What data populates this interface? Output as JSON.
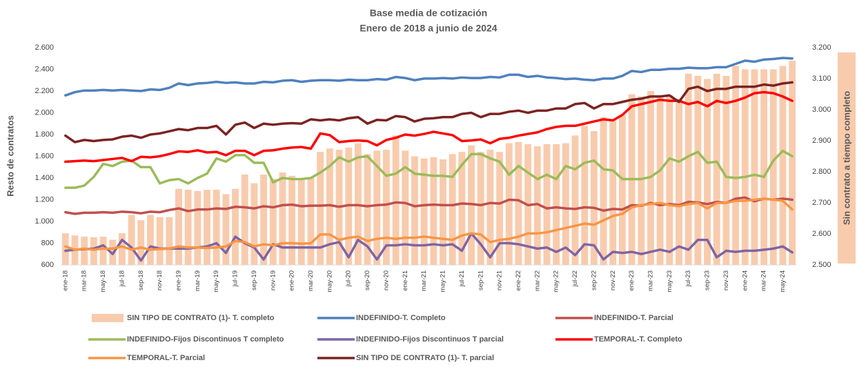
{
  "chart_data": {
    "type": "combo",
    "title": "Base media de cotización",
    "subtitle": "Enero de 2018 a junio de 2024",
    "y_label": "Resto de contratos",
    "y2_label": "Sin contrato a tiempo completo",
    "categories": [
      "ene-18",
      null,
      "mar-18",
      null,
      "may-18",
      null,
      "jul-18",
      null,
      "sep-18",
      null,
      "nov-18",
      null,
      "ene-19",
      null,
      "mar-19",
      null,
      "may-19",
      null,
      "jul-19",
      null,
      "sep-19",
      null,
      "nov-19",
      null,
      "ene-20",
      null,
      "mar-20",
      null,
      "may-20",
      null,
      "jul-20",
      null,
      "sep-20",
      null,
      "nov-20",
      null,
      "ene-21",
      null,
      "mar-21",
      null,
      "may-21",
      null,
      "jul-21",
      null,
      "sep-21",
      null,
      "nov-21",
      null,
      "ene-22",
      null,
      "mar-22",
      null,
      "may-22",
      null,
      "jul-22",
      null,
      "sep-22",
      null,
      "nov-22",
      null,
      "ene-23",
      null,
      "mar-23",
      null,
      "may-23",
      null,
      "jul-23",
      null,
      "sep-23",
      null,
      "nov-23",
      null,
      "ene-24",
      null,
      "mar-24",
      null,
      "may-24",
      null
    ],
    "ylim": [
      600,
      2600
    ],
    "yticks": [
      600,
      800,
      {
        "value": 1000,
        "label": "1.000"
      },
      {
        "value": 1200,
        "label": "1.200"
      },
      {
        "value": 1400,
        "label": "1.400"
      },
      {
        "value": 1600,
        "label": "1.600"
      },
      {
        "value": 1800,
        "label": "1.800"
      },
      {
        "value": 2000,
        "label": "2.000"
      },
      {
        "value": 2200,
        "label": "2.200"
      },
      {
        "value": 2400,
        "label": "2.400"
      },
      {
        "value": 2600,
        "label": "2.600"
      }
    ],
    "y2lim": [
      2500,
      3200
    ],
    "y2ticks": [
      {
        "value": 2500,
        "label": "2.500"
      },
      {
        "value": 2600,
        "label": "2.600"
      },
      {
        "value": 2700,
        "label": "2.700"
      },
      {
        "value": 2800,
        "label": "2.800"
      },
      {
        "value": 2900,
        "label": "2.900"
      },
      {
        "value": 3000,
        "label": "3.000"
      },
      {
        "value": 3100,
        "label": "3.100"
      },
      {
        "value": 3200,
        "label": "3.200"
      }
    ],
    "grid": false,
    "legend": "bottom",
    "series": [
      {
        "name": "SIN TIPO DE CONTRATO (1)- T. completo",
        "type": "bar",
        "axis": "y2",
        "color": "#f8cbad",
        "values": [
          2602,
          2595,
          2591,
          2589,
          2591,
          2581,
          2602,
          2661,
          2644,
          2661,
          2654,
          2654,
          2745,
          2742,
          2738,
          2742,
          2742,
          2728,
          2745,
          2791,
          2763,
          2791,
          2777,
          2798,
          2787,
          2780,
          2780,
          2864,
          2875,
          2871,
          2878,
          2892,
          2857,
          2868,
          2871,
          2917,
          2868,
          2850,
          2843,
          2847,
          2840,
          2857,
          2864,
          2885,
          2864,
          2871,
          2864,
          2892,
          2896,
          2889,
          2882,
          2889,
          2889,
          2892,
          2917,
          2948,
          2931,
          2976,
          2966,
          2983,
          3050,
          3043,
          3060,
          3039,
          3046,
          3036,
          3116,
          3109,
          3099,
          3116,
          3109,
          3141,
          3130,
          3130,
          3130,
          3130,
          3141,
          3158
        ]
      },
      {
        "name": "INDEFINIDO-T. Completo",
        "type": "line",
        "color": "#4f81bd",
        "values": [
          2160,
          2190,
          2205,
          2205,
          2210,
          2205,
          2210,
          2205,
          2200,
          2215,
          2210,
          2230,
          2270,
          2255,
          2270,
          2275,
          2285,
          2275,
          2280,
          2270,
          2270,
          2285,
          2280,
          2295,
          2300,
          2285,
          2295,
          2300,
          2300,
          2295,
          2305,
          2300,
          2300,
          2310,
          2305,
          2330,
          2320,
          2300,
          2315,
          2315,
          2320,
          2315,
          2325,
          2320,
          2320,
          2330,
          2325,
          2350,
          2350,
          2330,
          2340,
          2325,
          2320,
          2310,
          2315,
          2305,
          2300,
          2315,
          2315,
          2340,
          2385,
          2375,
          2395,
          2395,
          2405,
          2405,
          2415,
          2410,
          2410,
          2420,
          2420,
          2450,
          2480,
          2470,
          2490,
          2495,
          2505,
          2500
        ]
      },
      {
        "name": "INDEFINIDO-T. Parcial",
        "type": "line",
        "color": "#c0504d",
        "values": [
          1085,
          1070,
          1080,
          1080,
          1085,
          1080,
          1090,
          1085,
          1075,
          1090,
          1085,
          1105,
          1120,
          1095,
          1110,
          1110,
          1120,
          1115,
          1135,
          1130,
          1120,
          1140,
          1130,
          1150,
          1155,
          1140,
          1145,
          1145,
          1150,
          1135,
          1150,
          1150,
          1140,
          1150,
          1155,
          1175,
          1170,
          1140,
          1150,
          1155,
          1150,
          1150,
          1165,
          1160,
          1150,
          1170,
          1165,
          1200,
          1195,
          1150,
          1160,
          1120,
          1130,
          1120,
          1115,
          1130,
          1125,
          1100,
          1115,
          1110,
          1150,
          1145,
          1170,
          1150,
          1160,
          1150,
          1180,
          1175,
          1160,
          1180,
          1170,
          1210,
          1220,
          1185,
          1210,
          1200,
          1210,
          1200
        ]
      },
      {
        "name": "INDEFINIDO-Fijos Discontinuos T completo",
        "type": "line",
        "color": "#9bbb59",
        "values": [
          1310,
          1310,
          1330,
          1410,
          1530,
          1510,
          1550,
          1560,
          1500,
          1500,
          1350,
          1380,
          1390,
          1350,
          1400,
          1440,
          1580,
          1550,
          1610,
          1610,
          1540,
          1540,
          1360,
          1400,
          1390,
          1390,
          1400,
          1450,
          1510,
          1590,
          1550,
          1590,
          1600,
          1510,
          1420,
          1440,
          1500,
          1440,
          1430,
          1420,
          1420,
          1410,
          1520,
          1620,
          1620,
          1580,
          1550,
          1430,
          1510,
          1450,
          1390,
          1430,
          1390,
          1510,
          1480,
          1540,
          1560,
          1480,
          1470,
          1390,
          1390,
          1390,
          1410,
          1470,
          1580,
          1550,
          1600,
          1640,
          1540,
          1550,
          1410,
          1400,
          1410,
          1430,
          1410,
          1560,
          1650,
          1600
        ]
      },
      {
        "name": "INDEFINIDO-Fijos Discontinuos T parcial",
        "type": "line",
        "color": "#8064a2",
        "values": [
          730,
          740,
          745,
          750,
          780,
          700,
          830,
          760,
          640,
          770,
          750,
          750,
          750,
          750,
          760,
          770,
          800,
          710,
          860,
          800,
          760,
          650,
          790,
          760,
          760,
          760,
          760,
          760,
          790,
          810,
          670,
          830,
          770,
          650,
          780,
          780,
          790,
          780,
          780,
          790,
          780,
          790,
          730,
          890,
          790,
          670,
          800,
          800,
          790,
          770,
          750,
          760,
          720,
          760,
          690,
          790,
          780,
          650,
          720,
          710,
          720,
          700,
          720,
          740,
          720,
          770,
          740,
          830,
          830,
          670,
          730,
          720,
          730,
          730,
          740,
          750,
          770,
          715
        ]
      },
      {
        "name": "TEMPORAL-T. Completo",
        "type": "line",
        "color": "#ff0000",
        "values": [
          1550,
          1555,
          1560,
          1555,
          1565,
          1575,
          1585,
          1555,
          1595,
          1590,
          1600,
          1620,
          1645,
          1640,
          1655,
          1635,
          1640,
          1610,
          1650,
          1650,
          1610,
          1650,
          1655,
          1670,
          1680,
          1685,
          1670,
          1810,
          1795,
          1730,
          1740,
          1745,
          1740,
          1700,
          1750,
          1770,
          1800,
          1790,
          1805,
          1825,
          1810,
          1795,
          1740,
          1745,
          1755,
          1720,
          1760,
          1770,
          1790,
          1805,
          1820,
          1850,
          1870,
          1880,
          1880,
          1900,
          1920,
          1940,
          1930,
          1980,
          2060,
          2080,
          2100,
          2120,
          2110,
          2110,
          2080,
          2100,
          2060,
          2110,
          2090,
          2110,
          2140,
          2180,
          2190,
          2180,
          2150,
          2110
        ]
      },
      {
        "name": "TEMPORAL-T. Parcial",
        "type": "line",
        "color": "#f79646",
        "values": [
          770,
          740,
          750,
          740,
          750,
          750,
          770,
          740,
          760,
          740,
          745,
          750,
          770,
          760,
          760,
          755,
          760,
          770,
          820,
          810,
          770,
          790,
          780,
          800,
          800,
          795,
          800,
          880,
          880,
          830,
          850,
          860,
          820,
          840,
          850,
          840,
          850,
          850,
          860,
          850,
          840,
          830,
          870,
          890,
          880,
          810,
          830,
          840,
          860,
          890,
          890,
          900,
          920,
          940,
          960,
          980,
          970,
          1010,
          1050,
          1070,
          1130,
          1150,
          1160,
          1170,
          1150,
          1140,
          1160,
          1170,
          1120,
          1170,
          1170,
          1190,
          1190,
          1200,
          1210,
          1200,
          1190,
          1110
        ]
      },
      {
        "name": "SIN TIPO DE CONTRATO (1)- T. parcial",
        "type": "line",
        "color": "#7b2322",
        "values": [
          1790,
          1730,
          1750,
          1740,
          1750,
          1755,
          1780,
          1790,
          1770,
          1800,
          1810,
          1830,
          1850,
          1840,
          1860,
          1860,
          1880,
          1800,
          1890,
          1910,
          1860,
          1900,
          1890,
          1900,
          1905,
          1900,
          1940,
          1930,
          1940,
          1930,
          1950,
          1960,
          1900,
          1935,
          1930,
          1970,
          1960,
          1920,
          1945,
          1950,
          1960,
          1960,
          1990,
          2000,
          1960,
          1990,
          1990,
          2010,
          2020,
          2000,
          2020,
          2020,
          2040,
          2040,
          2080,
          2090,
          2040,
          2080,
          2080,
          2100,
          2120,
          2130,
          2150,
          2150,
          2160,
          2100,
          2220,
          2240,
          2200,
          2220,
          2220,
          2240,
          2240,
          2240,
          2260,
          2250,
          2270,
          2280
        ]
      }
    ]
  }
}
